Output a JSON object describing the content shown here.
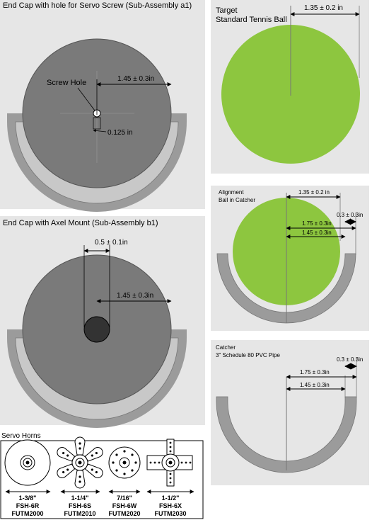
{
  "panel_a1": {
    "title": "End Cap with hole for Servo Screw (Sub-Assembly a1)",
    "hole_label": "Screw Hole",
    "radius_dim": "1.45 ± 0.3in",
    "hole_dim": "0.125 in"
  },
  "panel_b1": {
    "title": "End Cap with Axel Mount (Sub-Assembly b1)",
    "mount_dim": "0.5 ± 0.1in",
    "radius_dim": "1.45 ± 0.3in"
  },
  "panel_target": {
    "title_line1": "Target",
    "title_line2": "Standard Tennis Ball",
    "radius_dim": "1.35 ± 0.2 in"
  },
  "panel_alignment": {
    "title_line1": "Alignment",
    "title_line2": "Ball in Catcher",
    "ball_dim": "1.35 ± 0.2 in",
    "outer_dim": "1.75 ± 0.3in",
    "inner_dim": "1.45 ± 0.3in",
    "thickness_dim": "0.3 ± 0.3in"
  },
  "panel_catcher": {
    "title_line1": "Catcher",
    "title_line2": "3\" Schedule 80 PVC Pipe",
    "thickness_dim": "0.3 ± 0.3in",
    "outer_dim": "1.75 ± 0.3in",
    "inner_dim": "1.45 ± 0.3in"
  },
  "servo_horns": {
    "title": "Servo Horns",
    "items": [
      {
        "size": "1-3/8\"",
        "model": "FSH-6R",
        "part": "FUTM2000"
      },
      {
        "size": "1-1/4\"",
        "model": "FSH-6S",
        "part": "FUTM2010"
      },
      {
        "size": "7/16\"",
        "model": "FSH-6W",
        "part": "FUTM2020"
      },
      {
        "size": "1-1/2\"",
        "model": "FSH-6X",
        "part": "FUTM2030"
      }
    ]
  },
  "colors": {
    "panel_bg": "#e6e6e6",
    "cap_gray": "#7a7a7a",
    "pipe_gray": "#9b9b9b",
    "ball_green": "#8dc63f",
    "mount_dark": "#333333"
  }
}
